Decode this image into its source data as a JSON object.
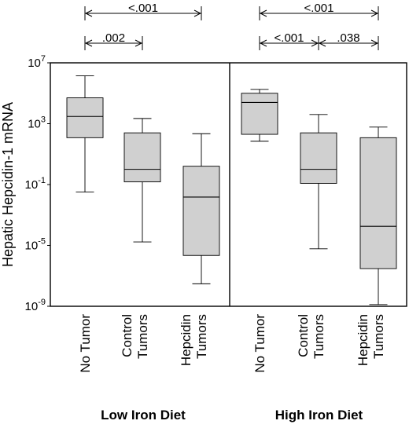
{
  "chart_data": {
    "type": "boxplot",
    "ylabel": "Hepatic Hepcidin-1 mRNA",
    "yscale": "log10",
    "ylim": [
      1e-09,
      10000000.0
    ],
    "yticks": [
      {
        "value": 10000000.0,
        "base": "10",
        "exp": "7"
      },
      {
        "value": 1000.0,
        "base": "10",
        "exp": "3"
      },
      {
        "value": 0.1,
        "base": "10",
        "exp": "-1"
      },
      {
        "value": 1e-05,
        "base": "10",
        "exp": "-5"
      },
      {
        "value": 1e-09,
        "base": "10",
        "exp": "-9"
      }
    ],
    "box_color": "#d0d0d0",
    "groups": [
      {
        "name": "Low Iron Diet",
        "boxes": [
          {
            "category": [
              "No Tumor"
            ],
            "whisker_low": 0.032,
            "q1": 120,
            "median": 3000,
            "q3": 50000,
            "whisker_high": 1400000
          },
          {
            "category": [
              "Control",
              "Tumors"
            ],
            "whisker_low": 1.7e-05,
            "q1": 0.15,
            "median": 1.0,
            "q3": 250,
            "whisker_high": 2200
          },
          {
            "category": [
              "Hepcidin",
              "Tumors"
            ],
            "whisker_low": 3e-08,
            "q1": 2.2e-06,
            "median": 0.015,
            "q3": 1.6,
            "whisker_high": 220
          }
        ],
        "comparisons": [
          {
            "from": 0,
            "to": 2,
            "label": "<.001"
          },
          {
            "from": 0,
            "to": 1,
            "label": ".002"
          }
        ]
      },
      {
        "name": "High Iron Diet",
        "boxes": [
          {
            "category": [
              "No Tumor"
            ],
            "whisker_low": 70,
            "q1": 200,
            "median": 25000,
            "q3": 100000,
            "whisker_high": 180000
          },
          {
            "category": [
              "Control",
              "Tumors"
            ],
            "whisker_low": 6e-06,
            "q1": 0.12,
            "median": 1.0,
            "q3": 250,
            "whisker_high": 4000
          },
          {
            "category": [
              "Hepcidin",
              "Tumors"
            ],
            "whisker_low": 1.3e-09,
            "q1": 3e-07,
            "median": 0.00018,
            "q3": 120,
            "whisker_high": 600
          }
        ],
        "comparisons": [
          {
            "from": 0,
            "to": 2,
            "label": "<.001"
          },
          {
            "from": 0,
            "to": 1,
            "label": "<.001"
          },
          {
            "from": 1,
            "to": 2,
            "label": ".038"
          }
        ]
      }
    ]
  }
}
